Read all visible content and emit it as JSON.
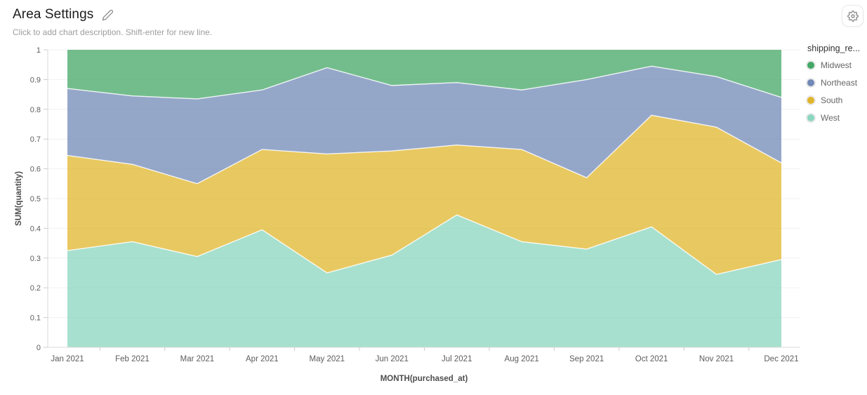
{
  "header": {
    "title": "Area Settings",
    "subtitle": "Click to add chart description. Shift-enter for new line."
  },
  "legend": {
    "title": "shipping_re...",
    "items": [
      {
        "label": "Midwest",
        "color": "#44A767"
      },
      {
        "label": "Northeast",
        "color": "#7289B7"
      },
      {
        "label": "South",
        "color": "#E0B52B"
      },
      {
        "label": "West",
        "color": "#8AD6BE"
      }
    ]
  },
  "chart_data": {
    "type": "area",
    "stacked": true,
    "normalized": true,
    "title": "Area Settings",
    "xlabel": "MONTH(purchased_at)",
    "ylabel": "SUM(quantity)",
    "ylim": [
      0,
      1
    ],
    "grid": true,
    "legend_position": "right",
    "yticks": [
      "0",
      "0.1",
      "0.2",
      "0.3",
      "0.4",
      "0.5",
      "0.6",
      "0.7",
      "0.8",
      "0.9",
      "1"
    ],
    "categories": [
      "Jan 2021",
      "Feb 2021",
      "Mar 2021",
      "Apr 2021",
      "May 2021",
      "Jun 2021",
      "Jul 2021",
      "Aug 2021",
      "Sep 2021",
      "Oct 2021",
      "Nov 2021",
      "Dec 2021"
    ],
    "stack_order_bottom_to_top": [
      "West",
      "South",
      "Northeast",
      "Midwest"
    ],
    "series": [
      {
        "name": "West",
        "color": "#8AD6BE",
        "values": [
          0.325,
          0.355,
          0.305,
          0.395,
          0.25,
          0.31,
          0.445,
          0.355,
          0.33,
          0.405,
          0.245,
          0.295
        ]
      },
      {
        "name": "South",
        "color": "#E0B52B",
        "values": [
          0.32,
          0.26,
          0.245,
          0.27,
          0.4,
          0.35,
          0.235,
          0.31,
          0.24,
          0.375,
          0.495,
          0.325
        ]
      },
      {
        "name": "Northeast",
        "color": "#7289B7",
        "values": [
          0.225,
          0.23,
          0.285,
          0.2,
          0.29,
          0.22,
          0.21,
          0.2,
          0.33,
          0.165,
          0.17,
          0.22
        ]
      },
      {
        "name": "Midwest",
        "color": "#44A767",
        "values": [
          0.13,
          0.155,
          0.165,
          0.135,
          0.06,
          0.12,
          0.11,
          0.135,
          0.1,
          0.055,
          0.09,
          0.16
        ]
      }
    ]
  }
}
